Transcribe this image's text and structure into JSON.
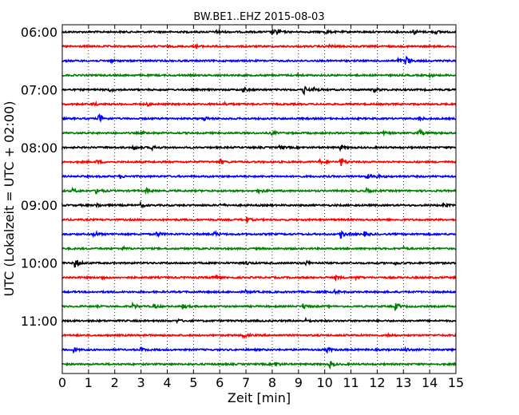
{
  "chart_data": {
    "type": "line",
    "title": "BW.BE1..EHZ 2015-08-03",
    "xlabel": "Zeit  [min]",
    "ylabel": "UTC (Lokalzeit = UTC + 02:00)",
    "xlim": [
      0,
      15
    ],
    "x_ticks": [
      "0",
      "1",
      "2",
      "3",
      "4",
      "5",
      "6",
      "7",
      "8",
      "9",
      "10",
      "11",
      "12",
      "13",
      "14",
      "15"
    ],
    "y_tick_labels": [
      "06:00",
      "07:00",
      "08:00",
      "09:00",
      "10:00",
      "11:00"
    ],
    "grid": "vertical dotted",
    "trace_interval_min": 15,
    "color_cycle": [
      "#000000",
      "#ff0000",
      "#0000ff",
      "#008000"
    ],
    "traces": [
      {
        "start": "06:00",
        "color": "#000000",
        "events": [
          [
            5.9,
            0.5
          ],
          [
            8.0,
            0.6
          ],
          [
            8.2,
            0.4
          ],
          [
            10.0,
            0.4
          ],
          [
            13.4,
            0.5
          ],
          [
            14.2,
            0.4
          ]
        ]
      },
      {
        "start": "06:15",
        "color": "#ff0000",
        "events": [
          [
            5.1,
            0.3
          ],
          [
            10.2,
            0.4
          ]
        ]
      },
      {
        "start": "06:30",
        "color": "#0000ff",
        "events": [
          [
            1.8,
            0.3
          ],
          [
            13.1,
            1.0
          ],
          [
            12.8,
            0.5
          ]
        ]
      },
      {
        "start": "06:45",
        "color": "#008000",
        "events": [
          [
            9.0,
            0.2
          ],
          [
            14.0,
            0.2
          ]
        ]
      },
      {
        "start": "07:00",
        "color": "#000000",
        "events": [
          [
            1.8,
            0.4
          ],
          [
            6.9,
            0.5
          ],
          [
            9.2,
            1.0
          ],
          [
            9.6,
            0.4
          ],
          [
            11.9,
            0.4
          ]
        ]
      },
      {
        "start": "07:15",
        "color": "#ff0000",
        "events": [
          [
            1.2,
            0.3
          ],
          [
            3.2,
            0.4
          ],
          [
            6.2,
            0.3
          ]
        ]
      },
      {
        "start": "07:30",
        "color": "#0000ff",
        "events": [
          [
            1.4,
            1.0
          ],
          [
            5.4,
            0.5
          ],
          [
            13.6,
            0.4
          ]
        ]
      },
      {
        "start": "07:45",
        "color": "#008000",
        "events": [
          [
            3.0,
            0.3
          ],
          [
            8.0,
            0.3
          ],
          [
            12.2,
            0.3
          ],
          [
            13.6,
            0.7
          ]
        ]
      },
      {
        "start": "08:00",
        "color": "#000000",
        "events": [
          [
            2.7,
            0.5
          ],
          [
            3.4,
            0.6
          ],
          [
            8.3,
            0.4
          ],
          [
            10.6,
            0.4
          ]
        ]
      },
      {
        "start": "08:15",
        "color": "#ff0000",
        "events": [
          [
            1.3,
            0.4
          ],
          [
            6.0,
            0.6
          ],
          [
            9.8,
            0.4
          ],
          [
            10.6,
            1.0
          ]
        ]
      },
      {
        "start": "08:30",
        "color": "#0000ff",
        "events": [
          [
            2.2,
            0.3
          ],
          [
            11.6,
            0.5
          ],
          [
            12.0,
            0.3
          ]
        ]
      },
      {
        "start": "08:45",
        "color": "#008000",
        "events": [
          [
            0.4,
            0.4
          ],
          [
            1.3,
            0.8
          ],
          [
            3.2,
            0.4
          ],
          [
            7.5,
            0.5
          ],
          [
            11.6,
            0.4
          ]
        ]
      },
      {
        "start": "09:00",
        "color": "#000000",
        "events": [
          [
            1.3,
            0.5
          ],
          [
            3.0,
            0.4
          ],
          [
            6.0,
            0.3
          ],
          [
            14.5,
            0.4
          ]
        ]
      },
      {
        "start": "09:15",
        "color": "#ff0000",
        "events": [
          [
            7.0,
            0.6
          ]
        ]
      },
      {
        "start": "09:30",
        "color": "#0000ff",
        "events": [
          [
            1.2,
            0.7
          ],
          [
            3.6,
            0.5
          ],
          [
            5.8,
            0.5
          ],
          [
            10.6,
            0.9
          ],
          [
            11.5,
            0.5
          ]
        ]
      },
      {
        "start": "09:45",
        "color": "#008000",
        "events": [
          [
            2.3,
            0.3
          ],
          [
            13.0,
            0.3
          ]
        ]
      },
      {
        "start": "10:00",
        "color": "#000000",
        "events": [
          [
            0.5,
            1.0
          ],
          [
            7.0,
            0.4
          ],
          [
            9.3,
            0.4
          ],
          [
            12.7,
            0.3
          ]
        ]
      },
      {
        "start": "10:15",
        "color": "#ff0000",
        "events": [
          [
            1.5,
            0.3
          ],
          [
            5.7,
            0.7
          ],
          [
            10.4,
            0.4
          ],
          [
            11.2,
            0.3
          ]
        ]
      },
      {
        "start": "10:30",
        "color": "#0000ff",
        "events": [
          [
            7.0,
            0.3
          ],
          [
            10.4,
            0.3
          ]
        ]
      },
      {
        "start": "10:45",
        "color": "#008000",
        "events": [
          [
            2.7,
            0.5
          ],
          [
            3.5,
            0.4
          ],
          [
            4.6,
            0.5
          ],
          [
            9.2,
            0.5
          ],
          [
            12.7,
            0.8
          ]
        ]
      },
      {
        "start": "11:00",
        "color": "#000000",
        "events": [
          [
            4.4,
            0.3
          ],
          [
            9.3,
            0.3
          ]
        ]
      },
      {
        "start": "11:15",
        "color": "#ff0000",
        "events": [
          [
            6.9,
            0.5
          ],
          [
            12.4,
            0.4
          ]
        ]
      },
      {
        "start": "11:30",
        "color": "#0000ff",
        "events": [
          [
            0.4,
            0.6
          ],
          [
            3.0,
            0.4
          ],
          [
            10.1,
            0.5
          ],
          [
            13.1,
            0.4
          ]
        ]
      },
      {
        "start": "11:45",
        "color": "#008000",
        "events": [
          [
            8.1,
            0.6
          ],
          [
            10.2,
            0.7
          ]
        ]
      }
    ]
  }
}
